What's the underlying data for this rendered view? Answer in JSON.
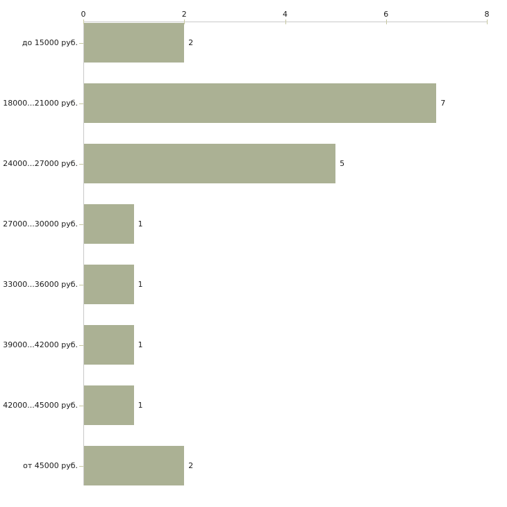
{
  "chart_data": {
    "type": "bar",
    "orientation": "horizontal",
    "title": "",
    "xlabel": "",
    "ylabel": "",
    "categories": [
      "до 15000 руб.",
      "18000...21000 руб.",
      "24000...27000 руб.",
      "27000...30000 руб.",
      "33000...36000 руб.",
      "39000...42000 руб.",
      "42000...45000 руб.",
      "от 45000 руб."
    ],
    "values": [
      2,
      7,
      5,
      1,
      1,
      1,
      1,
      2
    ],
    "x_ticks": [
      "0",
      "2",
      "4",
      "6",
      "8"
    ],
    "x_tick_values": [
      0,
      2,
      4,
      6,
      8
    ],
    "xlim": [
      0,
      8
    ],
    "grid": false,
    "legend_position": "none",
    "value_labels_shown": true,
    "axis_position": "top"
  },
  "colors": {
    "bar_fill": "#ABB194",
    "axis_line": "#C9C9C9",
    "tick_mark": "#C6C7A0",
    "text": "#1A1A1A",
    "background": "#FFFFFF"
  }
}
